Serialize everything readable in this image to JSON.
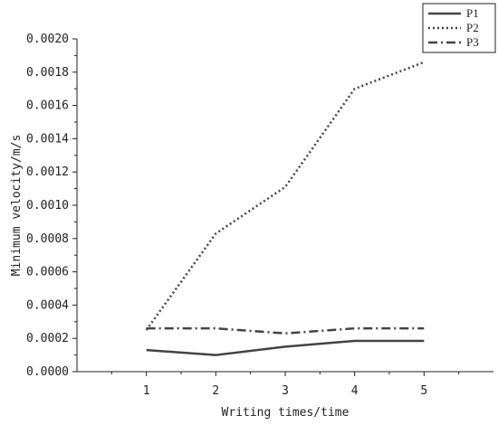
{
  "chart_data": {
    "type": "line",
    "title": "",
    "xlabel": "Writing times/time",
    "ylabel": "Minimum velocity/m/s",
    "x": [
      1,
      2,
      3,
      4,
      5
    ],
    "xlim": [
      0,
      6
    ],
    "ylim": [
      0,
      0.002
    ],
    "x_ticks": [
      "1",
      "2",
      "3",
      "4",
      "5"
    ],
    "y_ticks": [
      "0.0000",
      "0.0002",
      "0.0004",
      "0.0006",
      "0.0008",
      "0.0010",
      "0.0012",
      "0.0014",
      "0.0016",
      "0.0018",
      "0.0020"
    ],
    "grid": false,
    "legend_position": "top-right",
    "series": [
      {
        "name": "P1",
        "style": "solid",
        "color": "#444444",
        "values": [
          0.00013,
          0.0001,
          0.00015,
          0.000185,
          0.000185
        ]
      },
      {
        "name": "P2",
        "style": "dotted",
        "color": "#444444",
        "values": [
          0.00025,
          0.00083,
          0.00111,
          0.0017,
          0.00186
        ]
      },
      {
        "name": "P3",
        "style": "dashdot",
        "color": "#444444",
        "values": [
          0.00026,
          0.00026,
          0.00023,
          0.00026,
          0.00026
        ]
      }
    ]
  }
}
